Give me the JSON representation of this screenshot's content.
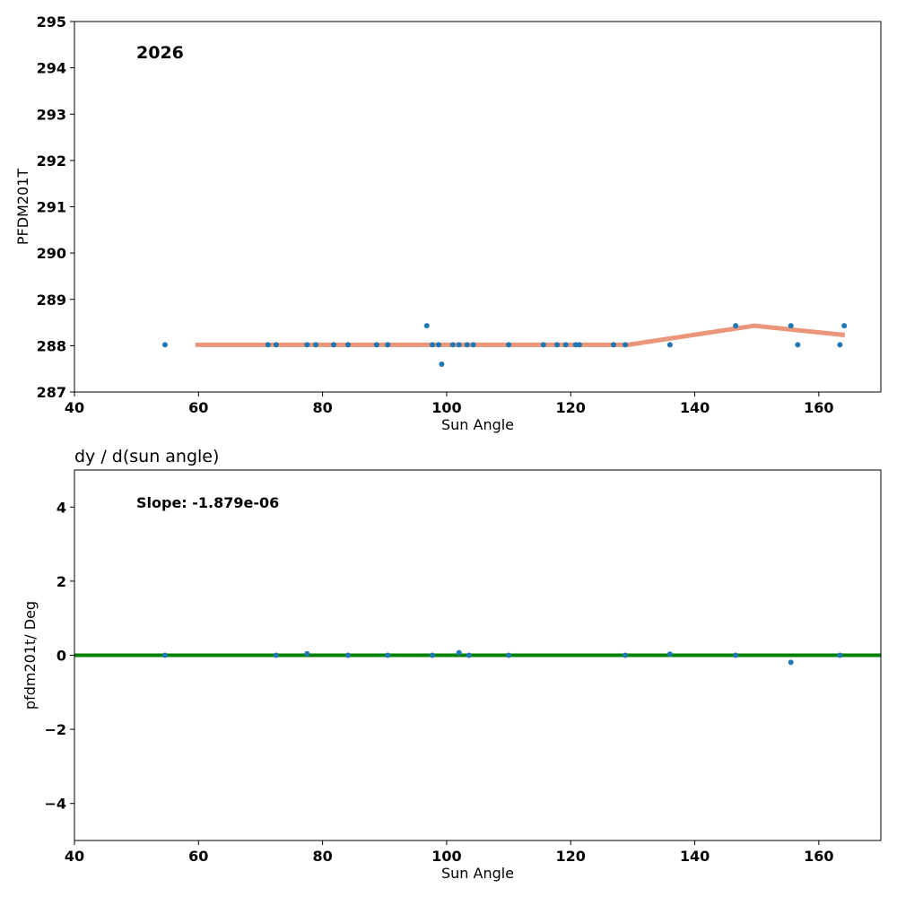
{
  "chart_data": [
    {
      "type": "scatter",
      "title": "",
      "annotation": "2026",
      "xlabel": "Sun Angle",
      "ylabel": "PFDM201T",
      "xlim": [
        40,
        170
      ],
      "ylim": [
        287,
        295
      ],
      "xticks": [
        40,
        60,
        80,
        100,
        120,
        140,
        160
      ],
      "yticks": [
        287,
        288,
        289,
        290,
        291,
        292,
        293,
        294,
        295
      ],
      "points": {
        "x": [
          54.6,
          71.2,
          72.5,
          77.5,
          78.9,
          81.8,
          84.1,
          88.7,
          90.5,
          96.8,
          97.7,
          98.7,
          99.2,
          101.0,
          102.0,
          103.3,
          104.3,
          110.0,
          115.6,
          117.8,
          119.2,
          120.8,
          121.4,
          126.9,
          128.8,
          136.0,
          146.6,
          155.5,
          156.6,
          163.4,
          164.1
        ],
        "y": [
          288.02,
          288.02,
          288.02,
          288.02,
          288.02,
          288.02,
          288.02,
          288.02,
          288.02,
          288.43,
          288.02,
          288.02,
          287.6,
          288.02,
          288.02,
          288.02,
          288.02,
          288.02,
          288.02,
          288.02,
          288.02,
          288.02,
          288.02,
          288.02,
          288.02,
          288.02,
          288.43,
          288.43,
          288.02,
          288.02,
          288.43
        ]
      },
      "fit": {
        "x": [
          59.5,
          129.3,
          149.6,
          164.2
        ],
        "y": [
          288.02,
          288.02,
          288.43,
          288.23
        ]
      },
      "colors": {
        "points": "#1f77b4",
        "fit": "#e9967a"
      }
    },
    {
      "type": "scatter",
      "title": "dy / d(sun angle)",
      "annotation": "Slope: -1.879e-06",
      "xlabel": "Sun Angle",
      "ylabel": "pfdm201t/ Deg",
      "xlim": [
        40,
        170
      ],
      "ylim": [
        -5,
        5
      ],
      "xticks": [
        40,
        60,
        80,
        100,
        120,
        140,
        160
      ],
      "yticks": [
        -4,
        -2,
        0,
        2,
        4
      ],
      "ytick_labels": [
        "−4",
        "−2",
        "0",
        "2",
        "4"
      ],
      "points": {
        "x": [
          54.6,
          72.5,
          77.5,
          84.1,
          90.5,
          97.7,
          102.0,
          103.6,
          110.0,
          128.8,
          136.0,
          146.6,
          155.5,
          163.4
        ],
        "y": [
          0,
          0,
          0.04,
          0,
          0,
          0,
          0.07,
          0,
          0,
          0,
          0.03,
          0,
          -0.19,
          0
        ]
      },
      "fit": {
        "x": [
          40,
          170
        ],
        "y": [
          0,
          0
        ]
      },
      "colors": {
        "points": "#1f77b4",
        "fit": "#008000"
      }
    }
  ]
}
